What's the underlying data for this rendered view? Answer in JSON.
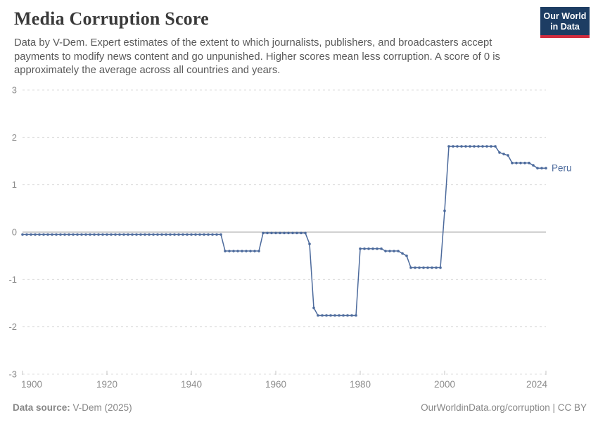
{
  "header": {
    "title": "Media Corruption Score",
    "subtitle_lines": [
      "Data by V-Dem. Expert estimates of the extent to which journalists, publishers, and broadcasters accept",
      "payments to modify news content and go unpunished. Higher scores mean less corruption. A score of 0 is",
      "approximately the average across all countries and years."
    ],
    "logo": {
      "line1": "Our World",
      "line2": "in Data"
    }
  },
  "chart_data": {
    "type": "line",
    "title": "Media Corruption Score",
    "xlabel": "",
    "ylabel": "",
    "xlim": [
      1900,
      2024
    ],
    "ylim": [
      -3,
      3
    ],
    "x_ticks": [
      1900,
      1920,
      1940,
      1960,
      1980,
      2000,
      2024
    ],
    "y_ticks": [
      3,
      2,
      1,
      0,
      -1,
      -2,
      -3
    ],
    "grid": "horizontal-dashed",
    "zero_line": true,
    "legend_position": "end-of-line label",
    "series": [
      {
        "name": "Peru",
        "color": "#4C6A9C",
        "piecewise_yearly_values": [
          {
            "from": 1900,
            "to": 1947,
            "value": -0.05
          },
          {
            "from": 1948,
            "to": 1956,
            "value": -0.4
          },
          {
            "from": 1957,
            "to": 1967,
            "value": -0.02
          },
          {
            "from": 1968,
            "to": 1968,
            "value": -0.25
          },
          {
            "from": 1969,
            "to": 1969,
            "value": -1.6
          },
          {
            "from": 1970,
            "to": 1979,
            "value": -1.76
          },
          {
            "from": 1980,
            "to": 1985,
            "value": -0.35
          },
          {
            "from": 1986,
            "to": 1989,
            "value": -0.4
          },
          {
            "from": 1990,
            "to": 1990,
            "value": -0.45
          },
          {
            "from": 1991,
            "to": 1991,
            "value": -0.5
          },
          {
            "from": 1992,
            "to": 1999,
            "value": -0.75
          },
          {
            "from": 2000,
            "to": 2000,
            "value": 0.45
          },
          {
            "from": 2001,
            "to": 2012,
            "value": 1.81
          },
          {
            "from": 2013,
            "to": 2013,
            "value": 1.68
          },
          {
            "from": 2014,
            "to": 2014,
            "value": 1.65
          },
          {
            "from": 2015,
            "to": 2015,
            "value": 1.62
          },
          {
            "from": 2016,
            "to": 2020,
            "value": 1.46
          },
          {
            "from": 2021,
            "to": 2021,
            "value": 1.41
          },
          {
            "from": 2022,
            "to": 2024,
            "value": 1.35
          }
        ]
      }
    ]
  },
  "colors": {
    "line": "#4C6A9C",
    "series_label": "#4C6A9C",
    "logo_background": "#1d3d63",
    "logo_accent_bar": "#d12d3f",
    "gridline": "#dcdcdc",
    "zero_line": "#a3a3a3",
    "axis_label": "#8d8d8d"
  },
  "footer": {
    "source_label": "Data source:",
    "source_value": "V-Dem (2025)",
    "credit": "OurWorldinData.org/corruption | CC BY"
  }
}
